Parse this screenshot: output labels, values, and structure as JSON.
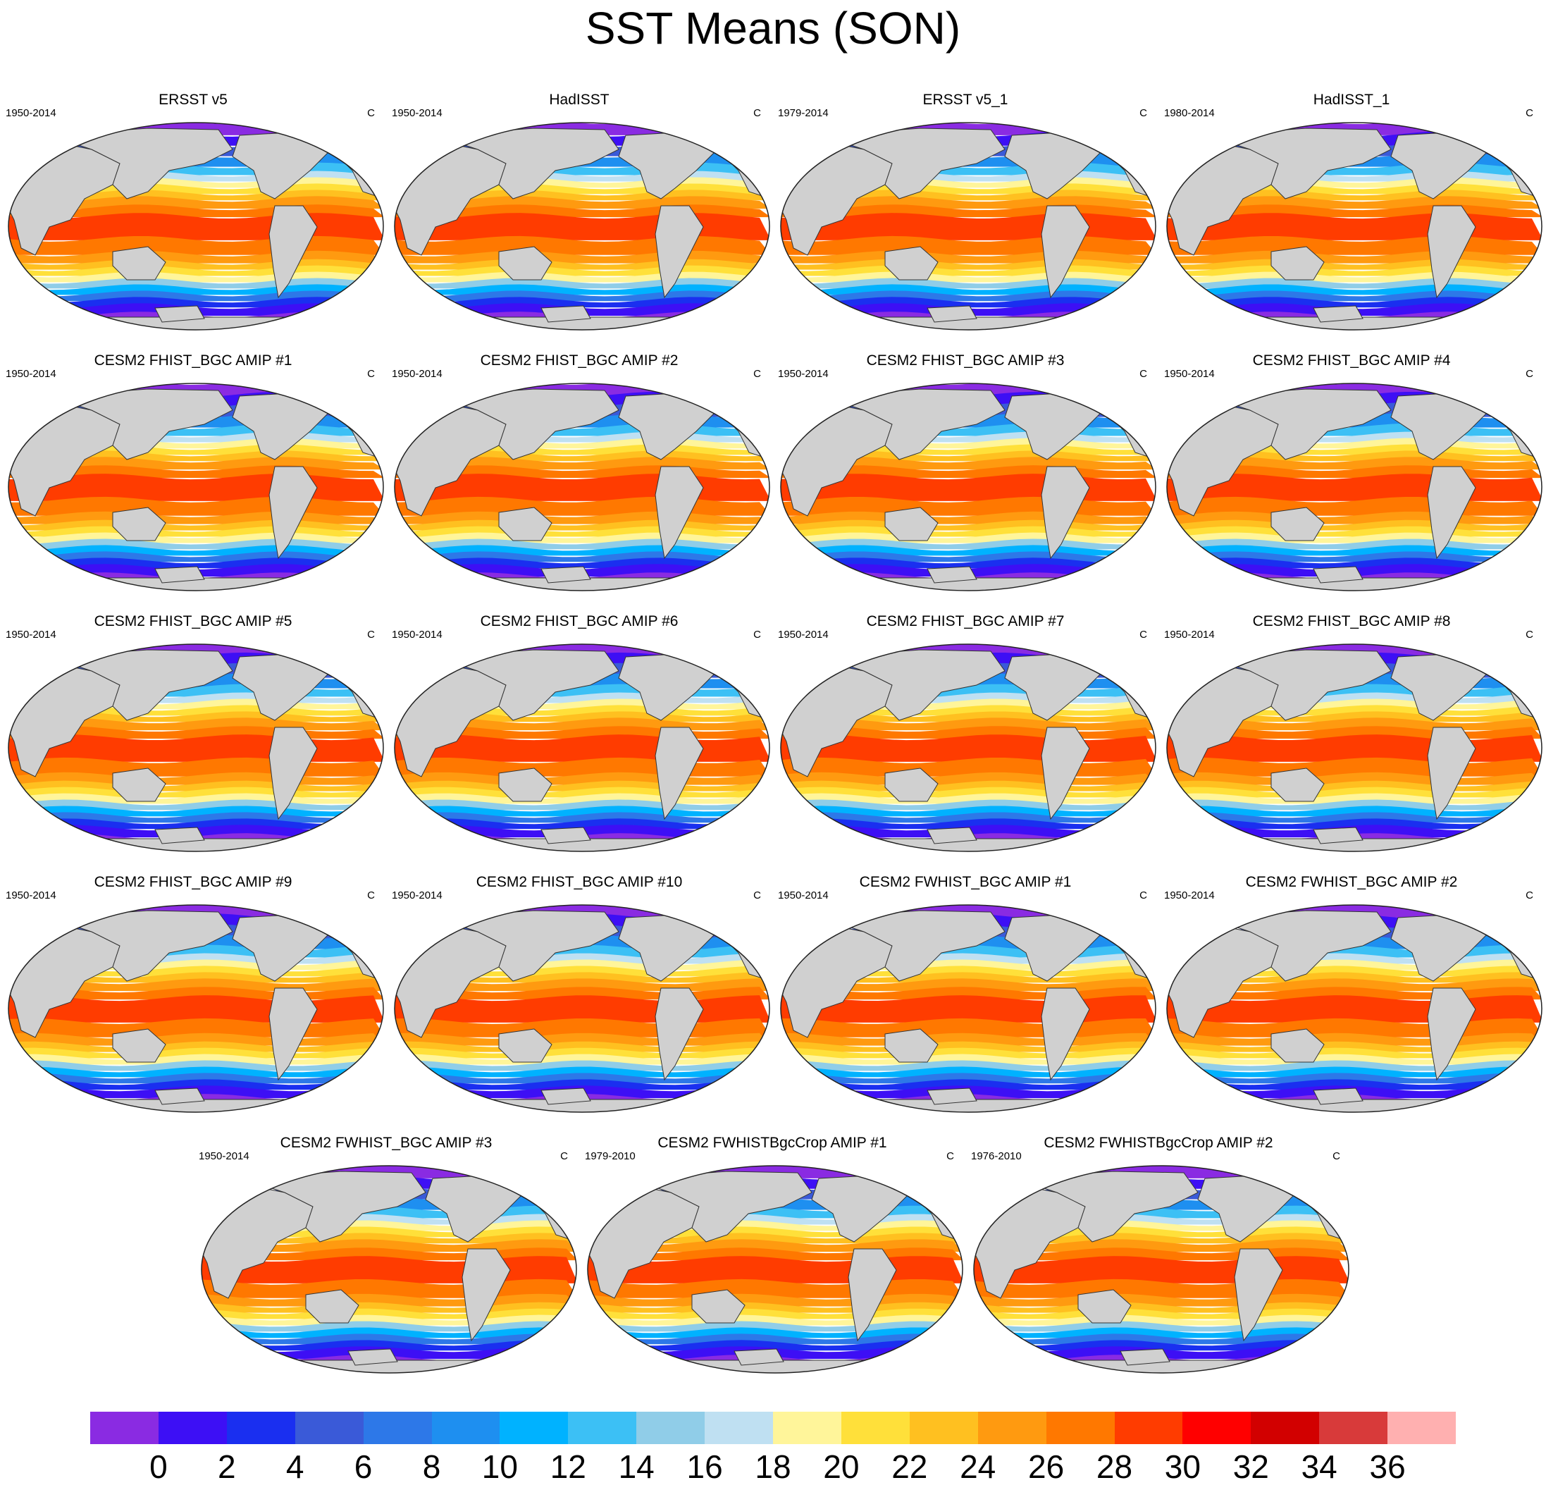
{
  "title": "SST Means (SON)",
  "unit": "C",
  "panels": [
    {
      "title": "ERSST v5",
      "period": "1950-2014"
    },
    {
      "title": "HadISST",
      "period": "1950-2014"
    },
    {
      "title": "ERSST v5_1",
      "period": "1979-2014"
    },
    {
      "title": "HadISST_1",
      "period": "1980-2014"
    },
    {
      "title": "CESM2 FHIST_BGC AMIP #1",
      "period": "1950-2014"
    },
    {
      "title": "CESM2 FHIST_BGC AMIP #2",
      "period": "1950-2014"
    },
    {
      "title": "CESM2 FHIST_BGC AMIP #3",
      "period": "1950-2014"
    },
    {
      "title": "CESM2 FHIST_BGC AMIP #4",
      "period": "1950-2014"
    },
    {
      "title": "CESM2 FHIST_BGC AMIP #5",
      "period": "1950-2014"
    },
    {
      "title": "CESM2 FHIST_BGC AMIP #6",
      "period": "1950-2014"
    },
    {
      "title": "CESM2 FHIST_BGC AMIP #7",
      "period": "1950-2014"
    },
    {
      "title": "CESM2 FHIST_BGC AMIP #8",
      "period": "1950-2014"
    },
    {
      "title": "CESM2 FHIST_BGC AMIP #9",
      "period": "1950-2014"
    },
    {
      "title": "CESM2 FHIST_BGC AMIP #10",
      "period": "1950-2014"
    },
    {
      "title": "CESM2 FWHIST_BGC AMIP #1",
      "period": "1950-2014"
    },
    {
      "title": "CESM2 FWHIST_BGC AMIP #2",
      "period": "1950-2014"
    },
    {
      "title": "CESM2 FWHIST_BGC AMIP #3",
      "period": "1950-2014"
    },
    {
      "title": "CESM2 FWHISTBgcCrop AMIP #1",
      "period": "1979-2010"
    },
    {
      "title": "CESM2 FWHISTBgcCrop AMIP #2",
      "period": "1976-2010"
    }
  ],
  "colorbar": {
    "levels": [
      0,
      2,
      4,
      6,
      8,
      10,
      12,
      14,
      16,
      18,
      20,
      22,
      24,
      26,
      28,
      30,
      32,
      34,
      36
    ],
    "tick_labels": [
      "0",
      "2",
      "4",
      "6",
      "8",
      "10",
      "12",
      "14",
      "16",
      "18",
      "20",
      "22",
      "24",
      "26",
      "28",
      "30",
      "32",
      "34",
      "36"
    ],
    "colors": [
      "#8a2be2",
      "#3d0ff5",
      "#1a2ff0",
      "#3a5ad8",
      "#2d78e8",
      "#1e8ff0",
      "#00b2ff",
      "#3cc0f5",
      "#90cde8",
      "#bfe0f2",
      "#fff59a",
      "#ffe03a",
      "#ffc020",
      "#ff9a10",
      "#ff7800",
      "#ff3c00",
      "#ff0000",
      "#d20000",
      "#d83a3a",
      "#ffb0b0"
    ]
  },
  "land_color": "#d0d0d0"
}
